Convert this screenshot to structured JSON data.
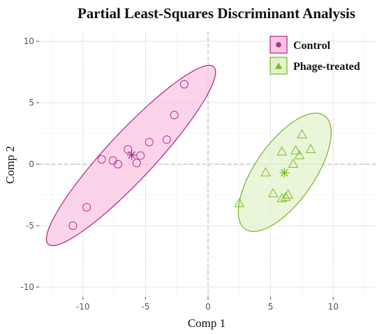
{
  "chart_data": {
    "type": "scatter",
    "title": "Partial Least-Squares Discriminant Analysis",
    "xlabel": "Comp 1",
    "ylabel": "Comp 2",
    "xlim": [
      -13.5,
      13.5
    ],
    "ylim": [
      -10.8,
      10.8
    ],
    "xticks": [
      -10,
      -5,
      0,
      5,
      10
    ],
    "yticks": [
      -10,
      -5,
      0,
      5,
      10
    ],
    "grid": true,
    "reference_lines": {
      "x": 0,
      "y": 0
    },
    "legend_position": "top-right",
    "series": [
      {
        "name": "Control",
        "marker": "circle",
        "color": "#b0328c",
        "fill": "#f9c6e3",
        "centroid": [
          -6.1,
          0.75
        ],
        "points": [
          [
            -10.8,
            -5.0
          ],
          [
            -9.7,
            -3.5
          ],
          [
            -8.5,
            0.4
          ],
          [
            -7.6,
            0.3
          ],
          [
            -7.2,
            0.0
          ],
          [
            -6.4,
            1.2
          ],
          [
            -5.7,
            0.1
          ],
          [
            -5.4,
            0.7
          ],
          [
            -4.7,
            1.8
          ],
          [
            -3.3,
            2.0
          ],
          [
            -2.7,
            4.0
          ],
          [
            -1.9,
            6.5
          ]
        ]
      },
      {
        "name": "Phage-treated",
        "marker": "triangle",
        "color": "#7cbc2b",
        "fill": "#e2f3cc",
        "centroid": [
          6.1,
          -0.7
        ],
        "points": [
          [
            2.5,
            -3.2
          ],
          [
            4.6,
            -0.7
          ],
          [
            5.2,
            -2.4
          ],
          [
            5.9,
            -2.8
          ],
          [
            6.2,
            -2.7
          ],
          [
            6.4,
            -2.5
          ],
          [
            5.9,
            1.0
          ],
          [
            6.8,
            0.0
          ],
          [
            7.0,
            1.1
          ],
          [
            7.3,
            0.7
          ],
          [
            7.5,
            2.4
          ],
          [
            8.2,
            1.2
          ]
        ]
      }
    ]
  }
}
